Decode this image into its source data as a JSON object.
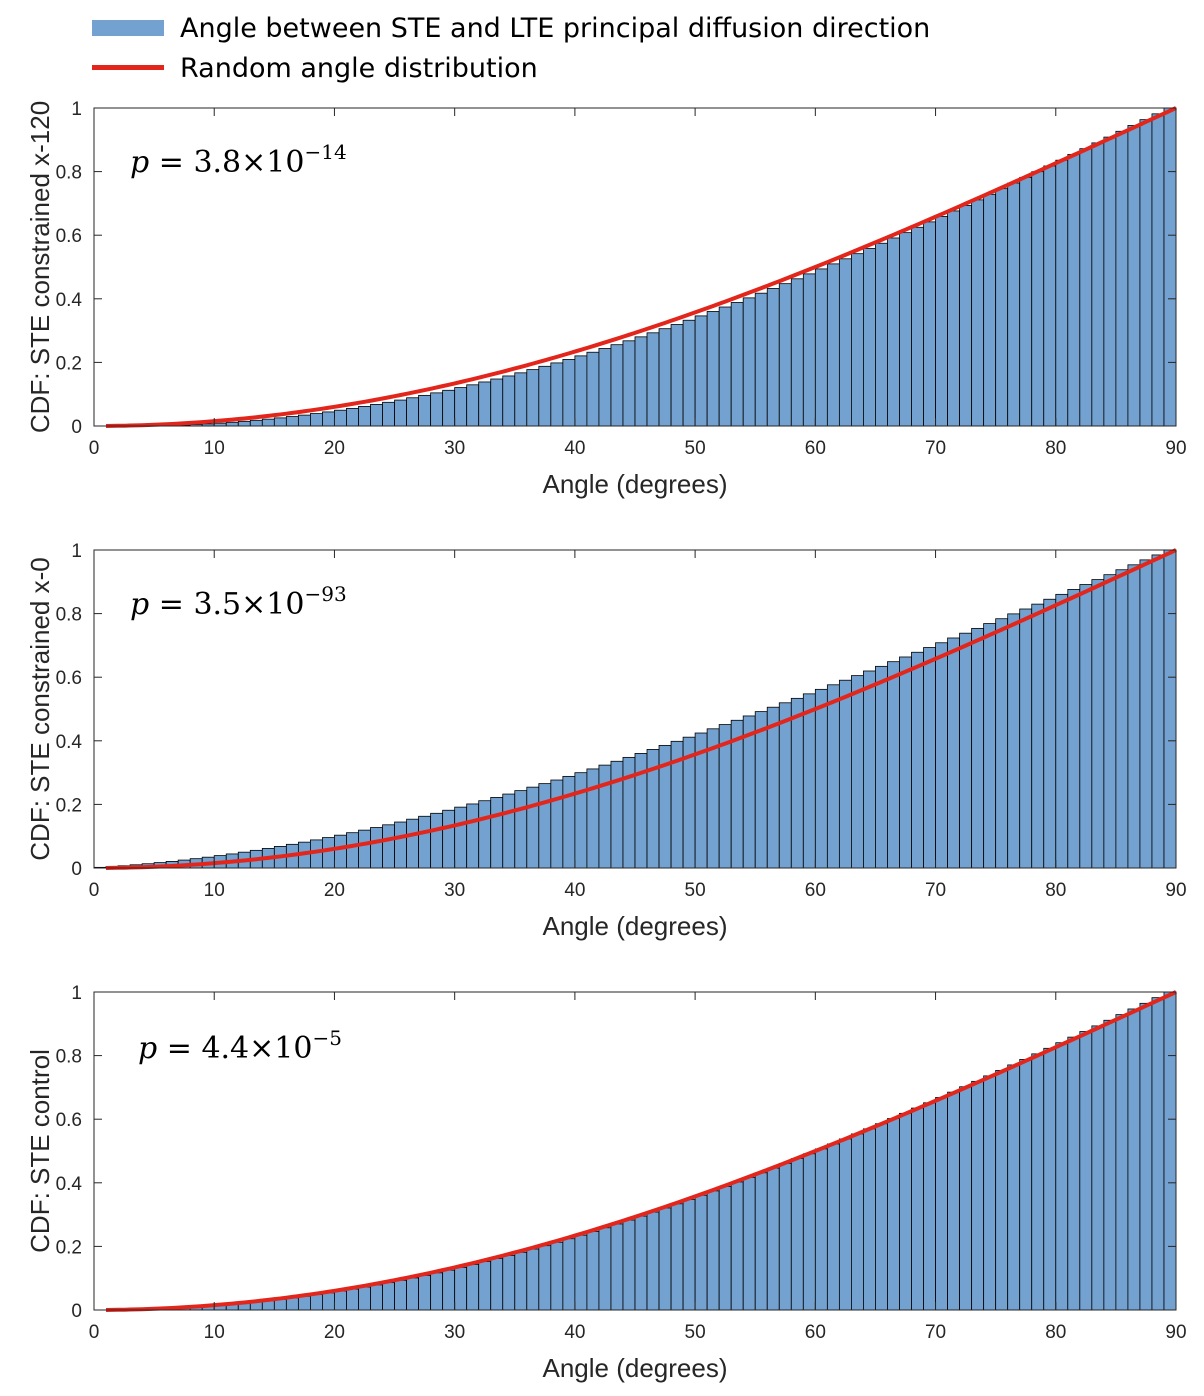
{
  "legend": {
    "items": [
      {
        "label": "Angle between STE and LTE principal diffusion direction",
        "color": "#73a2d1",
        "kind": "bar"
      },
      {
        "label": "Random angle distribution",
        "color": "#e3261c",
        "kind": "line"
      }
    ]
  },
  "colors": {
    "bar_fill": "#73a2d1",
    "bar_edge": "#000000",
    "curve": "#e3261c",
    "axis": "#262626"
  },
  "chart_data": [
    {
      "type": "bar",
      "title": "",
      "xlabel": "Angle (degrees)",
      "ylabel": "CDF: STE constrained x-120",
      "xlim": [
        0,
        90
      ],
      "ylim": [
        0,
        1
      ],
      "xticks": [
        "0",
        "10",
        "20",
        "30",
        "40",
        "50",
        "60",
        "70",
        "80",
        "90"
      ],
      "yticks": [
        "0",
        "0.2",
        "0.4",
        "0.6",
        "0.8",
        "1"
      ],
      "annotation": {
        "symbol": "p",
        "equals": " = ",
        "mantissa": "3.8",
        "times": "×10",
        "exponent": "−14"
      },
      "bins": {
        "start": 0,
        "end": 90,
        "count": 90
      },
      "series": [
        {
          "name": "Angle between STE and LTE principal diffusion direction",
          "kind": "histogram-cdf",
          "model": "random_angle_offset",
          "param": -0.025,
          "note": "bars slightly below curve, max gap ~0.025 near 50-60 deg"
        },
        {
          "name": "Random angle distribution",
          "kind": "line",
          "formula": "1 - cos(angle)"
        }
      ]
    },
    {
      "type": "bar",
      "title": "",
      "xlabel": "Angle (degrees)",
      "ylabel": "CDF: STE constrained x-0",
      "xlim": [
        0,
        90
      ],
      "ylim": [
        0,
        1
      ],
      "xticks": [
        "0",
        "10",
        "20",
        "30",
        "40",
        "50",
        "60",
        "70",
        "80",
        "90"
      ],
      "yticks": [
        "0",
        "0.2",
        "0.4",
        "0.6",
        "0.8",
        "1"
      ],
      "annotation": {
        "symbol": "p",
        "equals": " = ",
        "mantissa": "3.5",
        "times": "×10",
        "exponent": "−93"
      },
      "bins": {
        "start": 0,
        "end": 90,
        "count": 90
      },
      "series": [
        {
          "name": "Angle between STE and LTE principal diffusion direction",
          "kind": "histogram-cdf",
          "model": "random_angle_offset",
          "param": 0.055,
          "note": "bars above curve, max gap ~0.055 near 55-60 deg"
        },
        {
          "name": "Random angle distribution",
          "kind": "line",
          "formula": "1 - cos(angle)"
        }
      ]
    },
    {
      "type": "bar",
      "title": "",
      "xlabel": "Angle (degrees)",
      "ylabel": "CDF: STE control",
      "xlim": [
        0,
        90
      ],
      "ylim": [
        0,
        1
      ],
      "xticks": [
        "0",
        "10",
        "20",
        "30",
        "40",
        "50",
        "60",
        "70",
        "80",
        "90"
      ],
      "yticks": [
        "0",
        "0.2",
        "0.4",
        "0.6",
        "0.8",
        "1"
      ],
      "annotation": {
        "symbol": "p",
        "equals": " = ",
        "mantissa": "4.4",
        "times": "×10",
        "exponent": "−5"
      },
      "bins": {
        "start": 0,
        "end": 90,
        "count": 90
      },
      "series": [
        {
          "name": "Angle between STE and LTE principal diffusion direction",
          "kind": "histogram-cdf",
          "model": "random_angle_offset",
          "param": -0.01,
          "note": "bars nearly on curve, max gap ~0.01"
        },
        {
          "name": "Random angle distribution",
          "kind": "line",
          "formula": "1 - cos(angle)"
        }
      ]
    }
  ]
}
